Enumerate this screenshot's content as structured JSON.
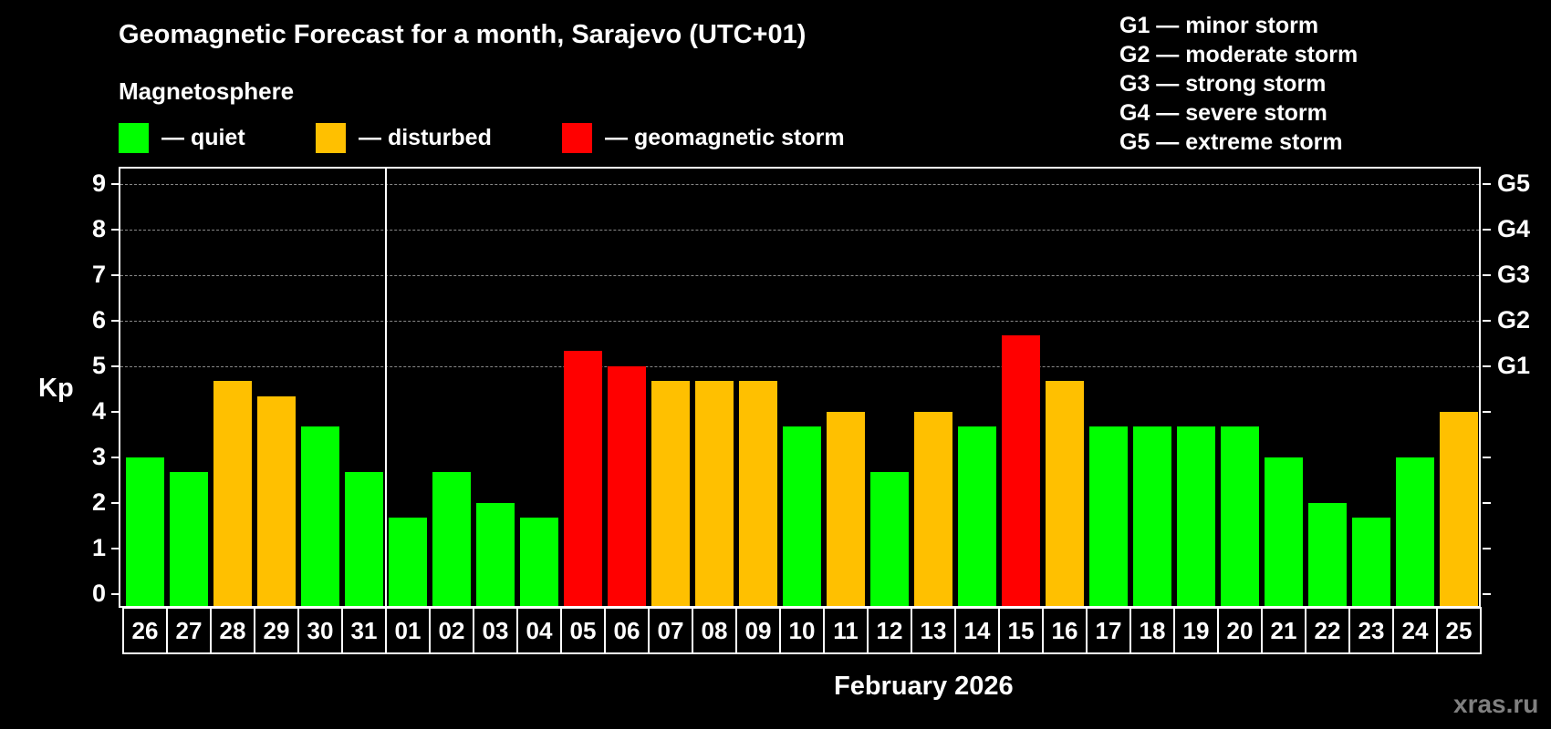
{
  "title": "Geomagnetic Forecast for a month, Sarajevo (UTC+01)",
  "subtitle": "Magnetosphere",
  "legend": [
    {
      "label": "— quiet",
      "color": "#00ff00"
    },
    {
      "label": "— disturbed",
      "color": "#ffc000"
    },
    {
      "label": "— geomagnetic storm",
      "color": "#ff0000"
    }
  ],
  "g_legend": [
    "G1 — minor storm",
    "G2 — moderate storm",
    "G3 — strong storm",
    "G4 — severe storm",
    "G5 — extreme storm"
  ],
  "y_axis_label": "Kp",
  "month_label": "February 2026",
  "watermark": "xras.ru",
  "chart_data": {
    "type": "bar",
    "title": "Geomagnetic Forecast for a month, Sarajevo (UTC+01)",
    "xlabel": "February 2026",
    "ylabel": "Kp",
    "ylim": [
      0,
      9
    ],
    "yticks": [
      0,
      1,
      2,
      3,
      4,
      5,
      6,
      7,
      8,
      9
    ],
    "right_axis_ticks": [
      {
        "value": 5,
        "label": "G1"
      },
      {
        "value": 6,
        "label": "G2"
      },
      {
        "value": 7,
        "label": "G3"
      },
      {
        "value": 8,
        "label": "G4"
      },
      {
        "value": 9,
        "label": "G5"
      }
    ],
    "grid": "dashed horizontal at 5-9",
    "categories": [
      "26",
      "27",
      "28",
      "29",
      "30",
      "31",
      "01",
      "02",
      "03",
      "04",
      "05",
      "06",
      "07",
      "08",
      "09",
      "10",
      "11",
      "12",
      "13",
      "14",
      "15",
      "16",
      "17",
      "18",
      "19",
      "20",
      "21",
      "22",
      "23",
      "24",
      "25"
    ],
    "values": [
      3.0,
      2.67,
      4.67,
      4.33,
      3.67,
      2.67,
      1.67,
      2.67,
      2.0,
      1.67,
      5.33,
      5.0,
      4.67,
      4.67,
      4.67,
      3.67,
      4.0,
      2.67,
      4.0,
      3.67,
      5.67,
      4.67,
      3.67,
      3.67,
      3.67,
      3.67,
      3.0,
      2.0,
      1.67,
      3.0,
      4.0
    ],
    "status": [
      "quiet",
      "quiet",
      "disturbed",
      "disturbed",
      "quiet",
      "quiet",
      "quiet",
      "quiet",
      "quiet",
      "quiet",
      "storm",
      "storm",
      "disturbed",
      "disturbed",
      "disturbed",
      "quiet",
      "disturbed",
      "quiet",
      "disturbed",
      "quiet",
      "storm",
      "disturbed",
      "quiet",
      "quiet",
      "quiet",
      "quiet",
      "quiet",
      "quiet",
      "quiet",
      "quiet",
      "disturbed"
    ],
    "colors": {
      "quiet": "#00ff00",
      "disturbed": "#ffc000",
      "storm": "#ff0000"
    },
    "legend": [
      "quiet",
      "disturbed",
      "geomagnetic storm"
    ]
  }
}
